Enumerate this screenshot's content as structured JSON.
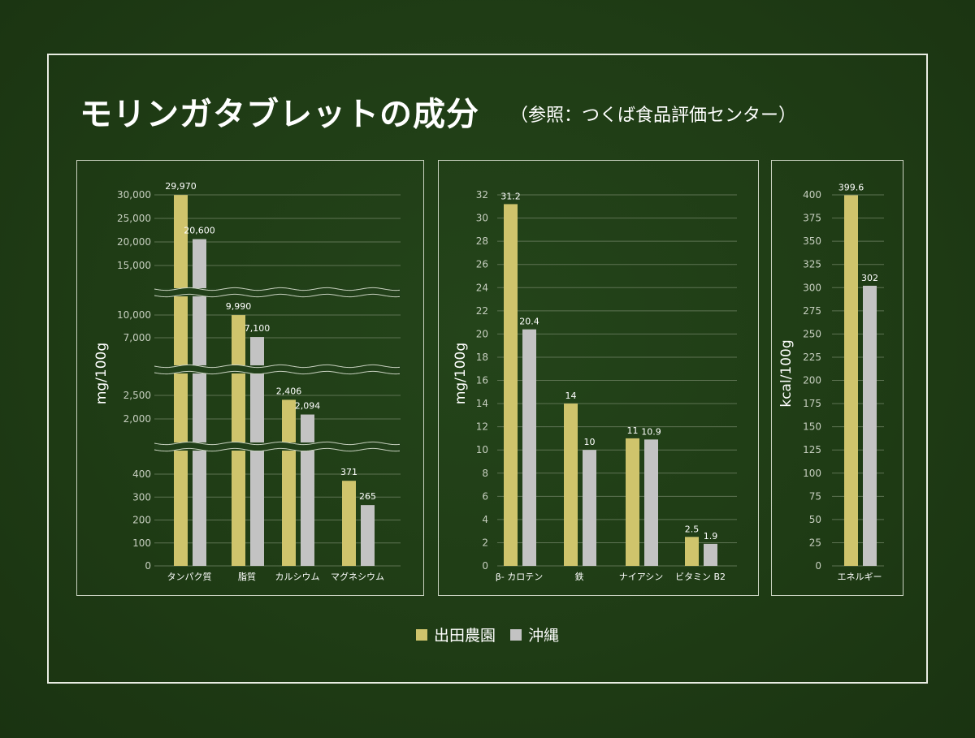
{
  "title": "モリンガタブレットの成分",
  "subtitle": "（参照：つくば食品評価センター）",
  "colors": {
    "series1": "#cfc46c",
    "series2": "#c3c3c3",
    "grid": "#5e7353",
    "axis": "#c9d2c0"
  },
  "legend": [
    {
      "name": "出田農園",
      "color": "#cfc46c"
    },
    {
      "name": "沖縄",
      "color": "#c3c3c3"
    }
  ],
  "chart_data": [
    {
      "type": "bar",
      "ylabel": "mg/100g",
      "axis_breaks": true,
      "ytick_groups": [
        [
          "0",
          "100",
          "200",
          "300",
          "400"
        ],
        [
          "2,000",
          "2,500"
        ],
        [
          "7,000",
          "10,000"
        ],
        [
          "15,000",
          "20,000",
          "25,000",
          "30,000"
        ]
      ],
      "categories": [
        "タンパク質",
        "脂質",
        "カルシウム",
        "マグネシウム"
      ],
      "series": [
        {
          "name": "出田農園",
          "values": [
            29970,
            9990,
            2406,
            371
          ],
          "labels": [
            "29,970",
            "9,990",
            "2,406",
            "371"
          ]
        },
        {
          "name": "沖縄",
          "values": [
            20600,
            7100,
            2094,
            265
          ],
          "labels": [
            "20,600",
            "7,100",
            "2,094",
            "265"
          ]
        }
      ]
    },
    {
      "type": "bar",
      "ylabel": "mg/100g",
      "ylim": [
        0,
        32
      ],
      "yticks": [
        "0",
        "2",
        "4",
        "6",
        "8",
        "10",
        "12",
        "14",
        "16",
        "18",
        "20",
        "22",
        "24",
        "26",
        "28",
        "30",
        "32"
      ],
      "categories": [
        "β- カロテン",
        "鉄",
        "ナイアシン",
        "ビタミン B2"
      ],
      "series": [
        {
          "name": "出田農園",
          "values": [
            31.2,
            14,
            11,
            2.5
          ],
          "labels": [
            "31.2",
            "14",
            "11",
            "2.5"
          ]
        },
        {
          "name": "沖縄",
          "values": [
            20.4,
            10,
            10.9,
            1.9
          ],
          "labels": [
            "20.4",
            "10",
            "10.9",
            "1.9"
          ]
        }
      ]
    },
    {
      "type": "bar",
      "ylabel": "kcal/100g",
      "ylim": [
        0,
        400
      ],
      "yticks": [
        "0",
        "25",
        "50",
        "75",
        "100",
        "125",
        "150",
        "175",
        "200",
        "225",
        "250",
        "275",
        "300",
        "325",
        "350",
        "375",
        "400"
      ],
      "categories": [
        "エネルギー"
      ],
      "series": [
        {
          "name": "出田農園",
          "values": [
            399.6
          ],
          "labels": [
            "399.6"
          ]
        },
        {
          "name": "沖縄",
          "values": [
            302
          ],
          "labels": [
            "302"
          ]
        }
      ]
    }
  ]
}
